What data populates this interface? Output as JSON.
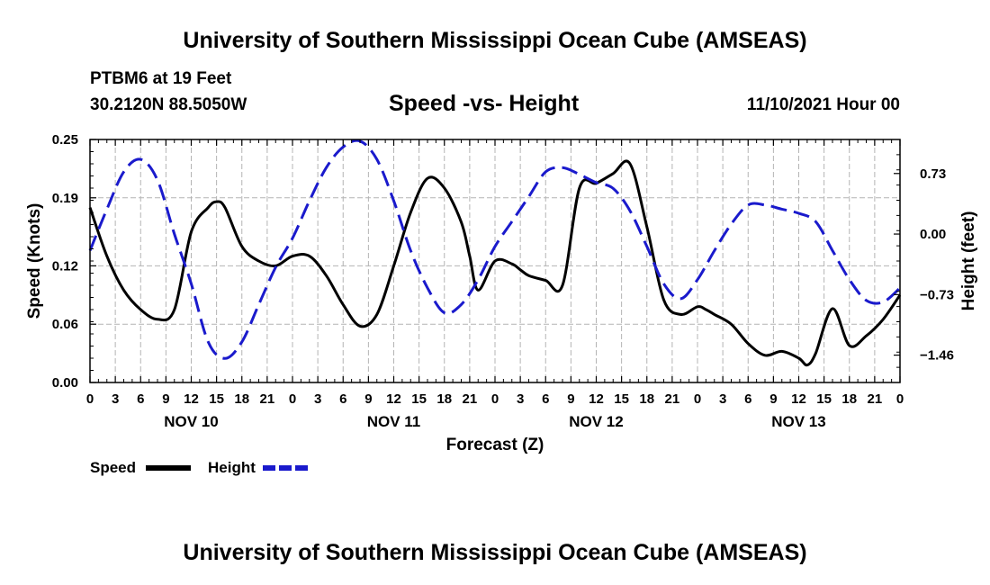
{
  "page": {
    "title_top": "University of Southern Mississippi Ocean Cube (AMSEAS)",
    "title_bottom": "University of Southern Mississippi Ocean Cube (AMSEAS)",
    "station": "PTBM6 at 19 Feet",
    "coords": "30.2120N  88.5050W",
    "subtitle": "Speed -vs- Height",
    "datetime": "11/10/2021 Hour 00"
  },
  "legend": {
    "speed_label": "Speed",
    "height_label": "Height",
    "speed_color": "#000000",
    "height_color": "#1a1acc"
  },
  "chart_data": {
    "type": "line",
    "title": "Speed -vs- Height",
    "xlabel": "Forecast (Z)",
    "ylabel": "Speed (Knots)",
    "y2label": "Height (feet)",
    "xlim": [
      0,
      96
    ],
    "ylim": [
      0,
      0.25
    ],
    "y2lim": [
      -1.79,
      1.14
    ],
    "x_ticks": [
      0,
      3,
      6,
      9,
      12,
      15,
      18,
      21,
      24,
      27,
      30,
      33,
      36,
      39,
      42,
      45,
      48,
      51,
      54,
      57,
      60,
      63,
      66,
      69,
      72,
      75,
      78,
      81,
      84,
      87,
      90,
      93,
      96
    ],
    "x_tick_labels": [
      "0",
      "3",
      "6",
      "9",
      "12",
      "15",
      "18",
      "21",
      "0",
      "3",
      "6",
      "9",
      "12",
      "15",
      "18",
      "21",
      "0",
      "3",
      "6",
      "9",
      "12",
      "15",
      "18",
      "21",
      "0",
      "3",
      "6",
      "9",
      "12",
      "15",
      "18",
      "21",
      "0"
    ],
    "day_labels": [
      {
        "label": "NOV 10",
        "x": 12
      },
      {
        "label": "NOV 11",
        "x": 36
      },
      {
        "label": "NOV 12",
        "x": 60
      },
      {
        "label": "NOV 13",
        "x": 84
      }
    ],
    "y_ticks": [
      0.0,
      0.06,
      0.12,
      0.19,
      0.25
    ],
    "y_tick_labels": [
      "0.00",
      "0.06",
      "0.12",
      "0.19",
      "0.25"
    ],
    "y2_ticks": [
      -1.46,
      -0.73,
      0.0,
      0.73
    ],
    "y2_tick_labels": [
      "−1.46",
      "−0.73",
      "0.00",
      "0.73"
    ],
    "grid": true,
    "series": [
      {
        "name": "Speed",
        "axis": "left",
        "style": "solid",
        "color": "#000000",
        "x": [
          0,
          2,
          4,
          6,
          8,
          10,
          12,
          14,
          15,
          16,
          18,
          20,
          22,
          24,
          26,
          28,
          30,
          32,
          34,
          36,
          38,
          40,
          42,
          44,
          45,
          46,
          48,
          50,
          51,
          52,
          54,
          56,
          58,
          60,
          62,
          64,
          66,
          68,
          70,
          72,
          73,
          74,
          76,
          78,
          80,
          82,
          84,
          85,
          86,
          88,
          90,
          92,
          94,
          96
        ],
        "values": [
          0.18,
          0.13,
          0.095,
          0.075,
          0.065,
          0.075,
          0.155,
          0.18,
          0.186,
          0.18,
          0.14,
          0.125,
          0.12,
          0.13,
          0.13,
          0.11,
          0.08,
          0.058,
          0.07,
          0.12,
          0.175,
          0.21,
          0.2,
          0.165,
          0.13,
          0.095,
          0.125,
          0.122,
          0.116,
          0.11,
          0.105,
          0.1,
          0.2,
          0.205,
          0.215,
          0.225,
          0.16,
          0.085,
          0.07,
          0.078,
          0.075,
          0.07,
          0.06,
          0.04,
          0.028,
          0.032,
          0.025,
          0.018,
          0.03,
          0.076,
          0.038,
          0.048,
          0.065,
          0.09
        ]
      },
      {
        "name": "Height",
        "axis": "right",
        "style": "dashed",
        "color": "#1a1acc",
        "x": [
          0,
          2,
          4,
          6,
          8,
          10,
          12,
          14,
          16,
          18,
          20,
          22,
          24,
          26,
          28,
          30,
          32,
          34,
          36,
          38,
          40,
          42,
          44,
          46,
          48,
          50,
          52,
          54,
          56,
          58,
          60,
          62,
          64,
          66,
          68,
          70,
          72,
          74,
          76,
          78,
          80,
          82,
          84,
          86,
          88,
          90,
          92,
          94,
          96
        ],
        "values": [
          -0.2,
          0.3,
          0.75,
          0.9,
          0.65,
          0.0,
          -0.6,
          -1.3,
          -1.5,
          -1.3,
          -0.85,
          -0.4,
          -0.05,
          0.4,
          0.8,
          1.05,
          1.12,
          0.9,
          0.4,
          -0.2,
          -0.65,
          -0.95,
          -0.85,
          -0.55,
          -0.15,
          0.15,
          0.45,
          0.75,
          0.8,
          0.72,
          0.62,
          0.55,
          0.28,
          -0.15,
          -0.6,
          -0.78,
          -0.55,
          -0.2,
          0.12,
          0.35,
          0.35,
          0.3,
          0.25,
          0.15,
          -0.2,
          -0.55,
          -0.8,
          -0.82,
          -0.65
        ]
      }
    ]
  }
}
